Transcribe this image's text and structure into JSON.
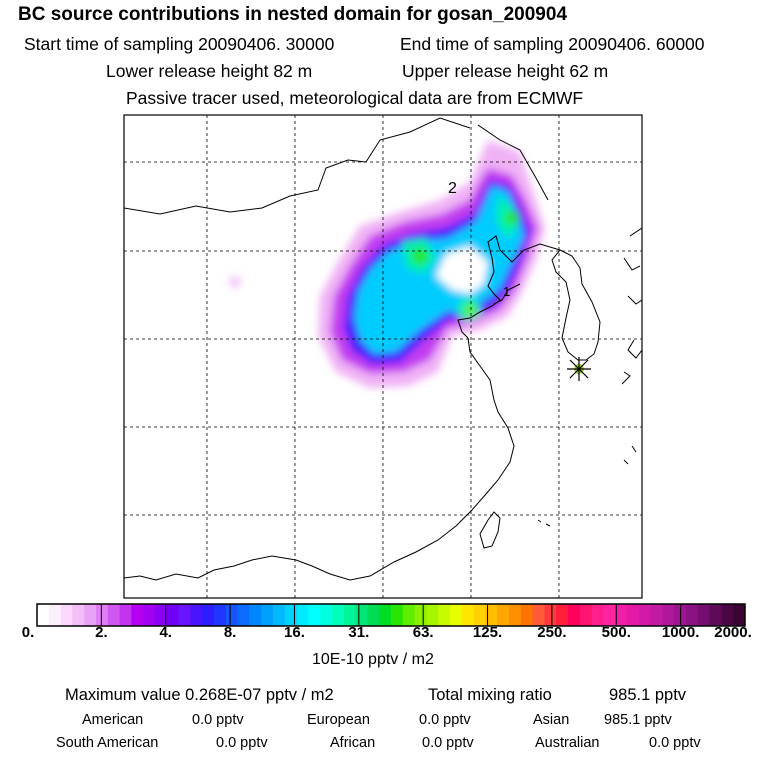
{
  "title": "BC  source contributions in nested domain for gosan_200904",
  "header": {
    "start_label": "Start time of sampling 20090406. 30000",
    "end_label": "End time of sampling 20090406. 60000",
    "lower_label": "Lower release height   82 m",
    "upper_label": "Upper release height   62 m",
    "tracer_note": "Passive tracer used, meteorological data are from ECMWF"
  },
  "map": {
    "annotations": [
      "2",
      "1"
    ],
    "receptor_marker": "star-marker",
    "colors": {
      "coast": "#000000",
      "grid": "#000000"
    }
  },
  "colorbar": {
    "tick_labels": [
      "0.",
      "2.",
      "4.",
      "8.",
      "16.",
      "31.",
      "63.",
      "125.",
      "250.",
      "500.",
      "1000.",
      "2000."
    ],
    "colors": [
      "#ffffff",
      "#fdf0fd",
      "#f9d8fc",
      "#f4bef9",
      "#e8a2f6",
      "#df7ff3",
      "#d057f0",
      "#c434f0",
      "#b400f2",
      "#a200f2",
      "#8a00f4",
      "#7000f6",
      "#6b14ff",
      "#4b14ff",
      "#2e1eff",
      "#1e36ff",
      "#1555ff",
      "#0b6bff",
      "#0087ff",
      "#00a0ff",
      "#00b9ff",
      "#00d3ff",
      "#00ebff",
      "#00ffff",
      "#00ffe0",
      "#00ffbc",
      "#00f59a",
      "#00e676",
      "#00dd55",
      "#00dd25",
      "#28e600",
      "#60ee00",
      "#8af000",
      "#a8f500",
      "#c8fa00",
      "#e8ff00",
      "#ffe600",
      "#ffd200",
      "#ffbe00",
      "#ffa600",
      "#ff9000",
      "#ff7400",
      "#ff5a3a",
      "#ff3d3d",
      "#ff1f3c",
      "#ff005a",
      "#ff1470",
      "#ff1e8c",
      "#ff24a0",
      "#f21ea8",
      "#e41aa6",
      "#d21aa6",
      "#c21aa2",
      "#b0189a",
      "#9d1591",
      "#8a1282",
      "#740e6e",
      "#5e0a58",
      "#4a0644",
      "#380432"
    ],
    "unit": "10E-10 pptv / m2"
  },
  "stats": {
    "max_label": "Maximum value  0.268E-07 pptv / m2",
    "total_label": "Total mixing ratio",
    "total_value": "985.1 pptv",
    "regions": [
      {
        "name": "American",
        "value": "0.0 pptv"
      },
      {
        "name": "European",
        "value": "0.0 pptv"
      },
      {
        "name": "Asian",
        "value": "985.1 pptv"
      },
      {
        "name": "South American",
        "value": "0.0 pptv"
      },
      {
        "name": "African",
        "value": "0.0 pptv"
      },
      {
        "name": "Australian",
        "value": "0.0 pptv"
      }
    ]
  }
}
